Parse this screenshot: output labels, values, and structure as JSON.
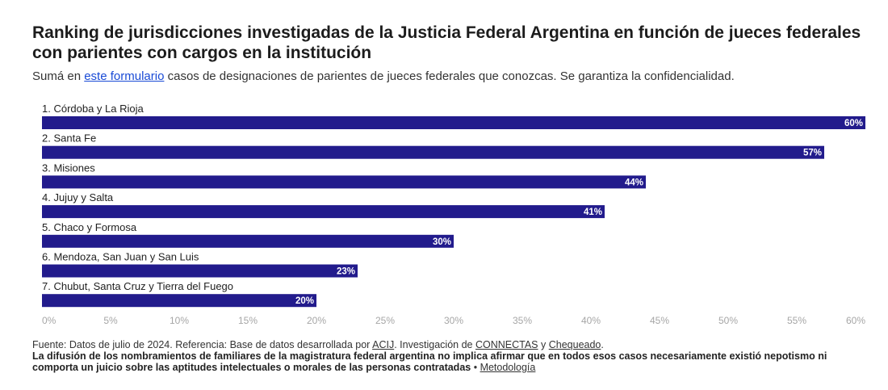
{
  "header": {
    "title": "Ranking de jurisdicciones investigadas de la Justicia Federal Argentina en función de jueces federales con parientes con cargos en la institución",
    "subtitle_pre": "Sumá en ",
    "subtitle_link": "este formulario",
    "subtitle_post": " casos de designaciones de parientes de jueces federales que conozcas. Se garantiza la confidencialidad."
  },
  "colors": {
    "bar": "#221b8c",
    "bar_label": "#ffffff",
    "axis_text": "#a6a6a6"
  },
  "chart_data": {
    "type": "bar",
    "orientation": "horizontal",
    "categories": [
      "1. Córdoba y La Rioja",
      "2. Santa Fe",
      "3. Misiones",
      "4. Jujuy y Salta",
      "5. Chaco y Formosa",
      "6. Mendoza, San Juan y San Luis",
      "7. Chubut, Santa Cruz y Tierra del Fuego"
    ],
    "values": [
      60,
      57,
      44,
      41,
      30,
      23,
      20
    ],
    "value_labels": [
      "60%",
      "57%",
      "44%",
      "41%",
      "30%",
      "23%",
      "20%"
    ],
    "xlim": [
      0,
      60
    ],
    "xticks": [
      0,
      5,
      10,
      15,
      20,
      25,
      30,
      35,
      40,
      45,
      50,
      55,
      60
    ],
    "xtick_labels": [
      "0%",
      "5%",
      "10%",
      "15%",
      "20%",
      "25%",
      "30%",
      "35%",
      "40%",
      "45%",
      "50%",
      "55%",
      "60%"
    ],
    "grid": false
  },
  "footer": {
    "line1_a": "Fuente: Datos de julio de 2024. Referencia: Base de datos desarrollada por ",
    "link_acij": "ACIJ",
    "line1_b": ". Investigación de ",
    "link_connectas": "CONNECTAS",
    "line1_c": " y ",
    "link_chequeado": "Chequeado",
    "line1_d": ".",
    "disclaimer": "La difusión de los nombramientos de familiares de la magistratura federal argentina no implica afirmar que en todos esos casos necesariamente existió nepotismo ni comporta un juicio sobre las aptitudes intelectuales o morales de las personas contratadas",
    "separator": " • ",
    "link_metodologia": "Metodología"
  }
}
